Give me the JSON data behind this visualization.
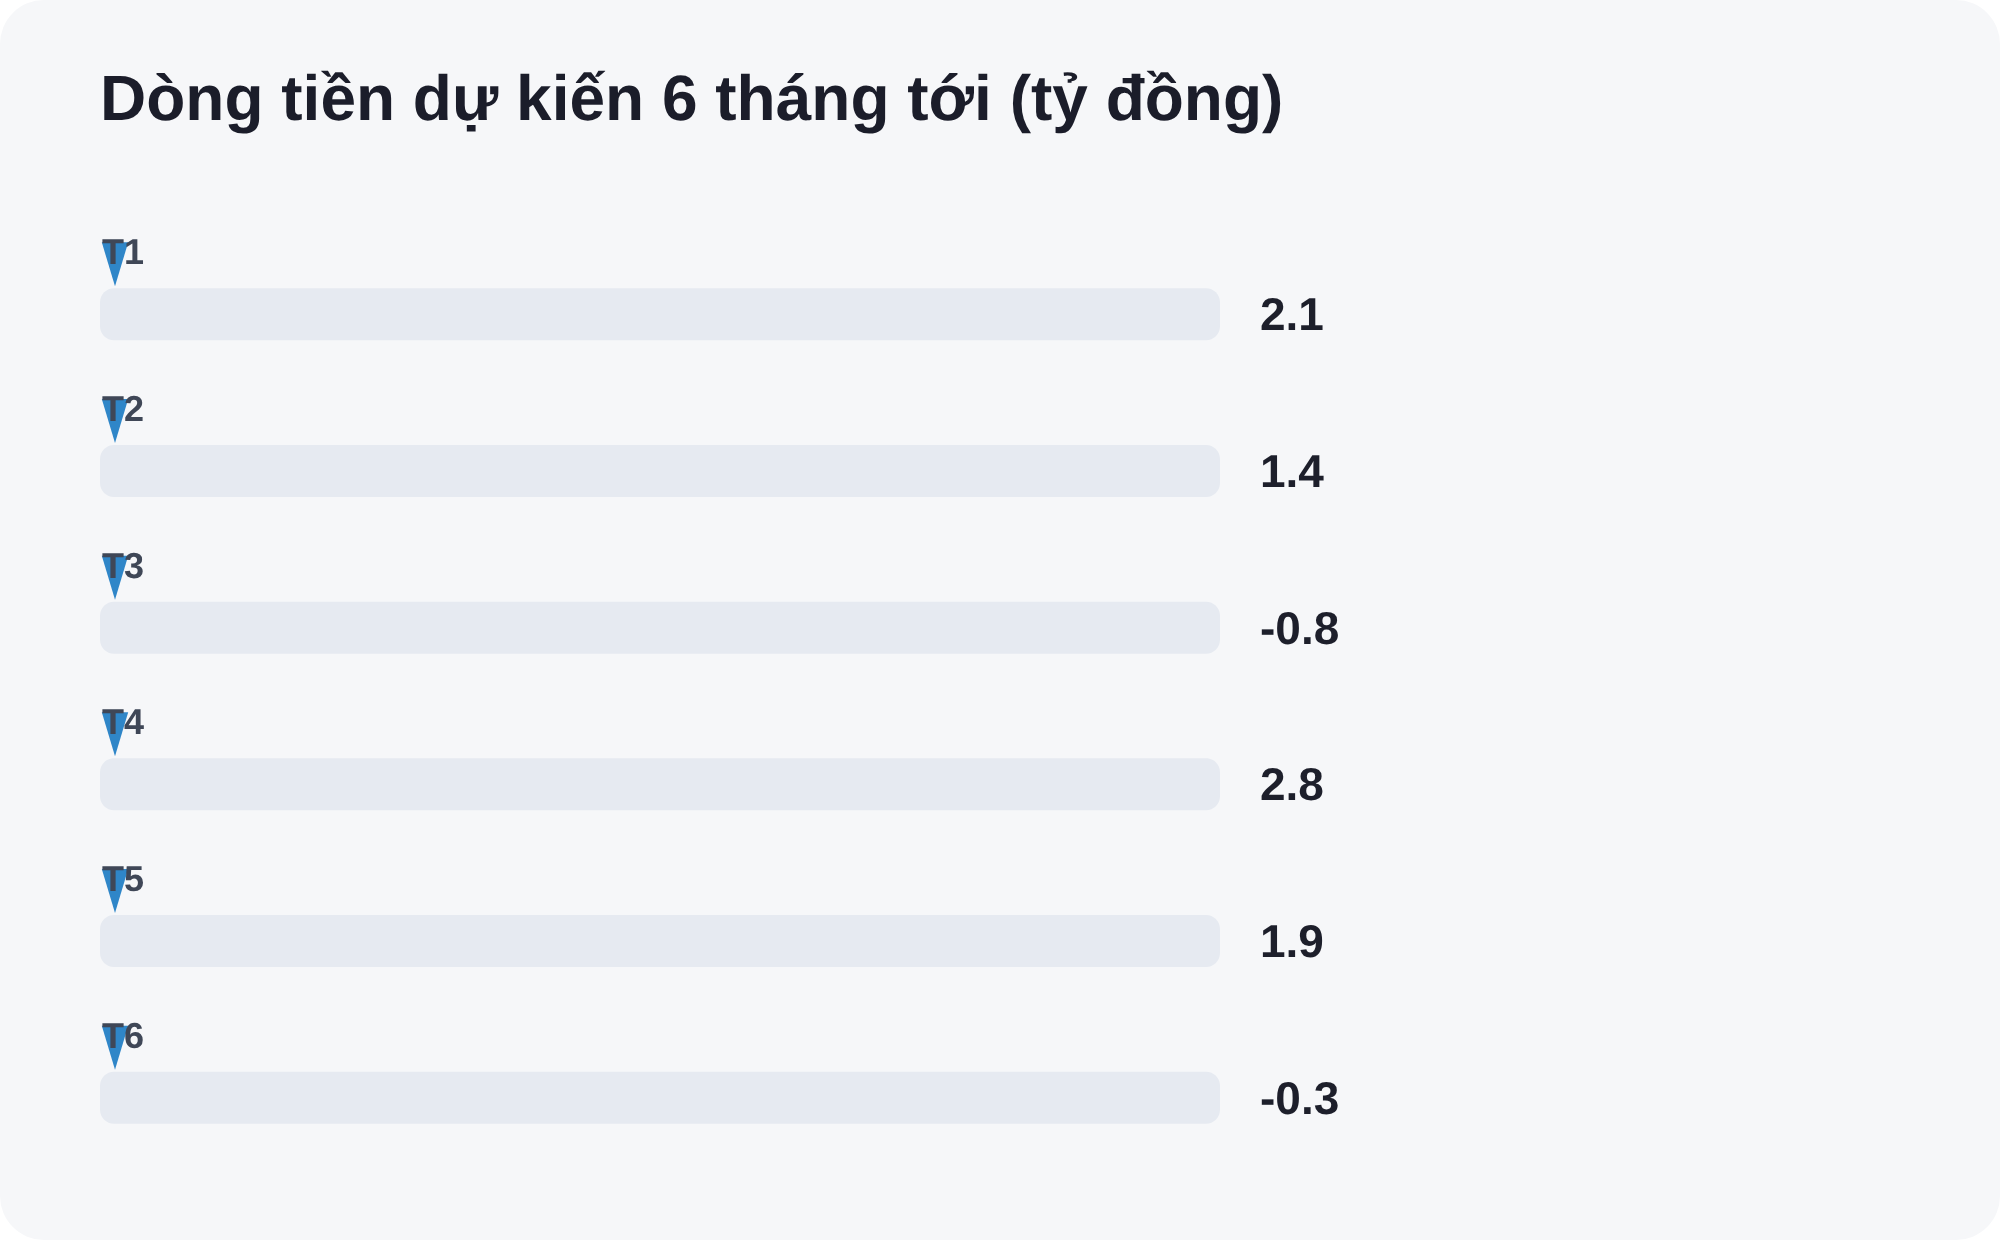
{
  "chart_data": {
    "type": "other",
    "title": "Dòng tiền dự kiến 6 tháng tới (tỷ đồng)",
    "categories": [
      "T1",
      "T2",
      "T3",
      "T4",
      "T5",
      "T6"
    ],
    "values": [
      2.1,
      1.4,
      -0.8,
      2.8,
      1.9,
      -0.3
    ],
    "data_labels": true
  }
}
